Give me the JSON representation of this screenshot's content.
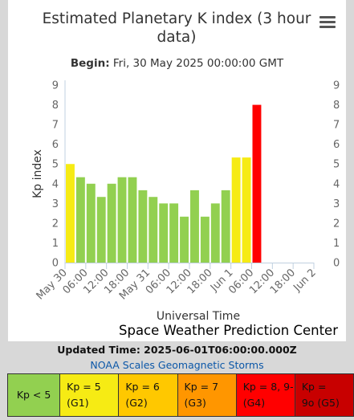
{
  "title": "Estimated Planetary K index (3 hour data)",
  "menu_icon": "hamburger-menu-icon",
  "begin": {
    "label": "Begin:",
    "value": "Fri, 30 May 2025 00:00:00 GMT"
  },
  "credits": "Space Weather Prediction Center",
  "updated": "Updated Time: 2025-06-01T06:00:00.000Z",
  "noaa_link": "NOAA Scales Geomagnetic Storms",
  "legend": [
    {
      "line1": "Kp < 5",
      "line2": "",
      "color": "#92d050"
    },
    {
      "line1": "Kp = 5",
      "line2": "(G1)",
      "color": "#f6eb14"
    },
    {
      "line1": "Kp = 6",
      "line2": "(G2)",
      "color": "#ffc800"
    },
    {
      "line1": "Kp = 7",
      "line2": "(G3)",
      "color": "#ff9600"
    },
    {
      "line1": "Kp = 8, 9-",
      "line2": "(G4)",
      "color": "#ff0000"
    },
    {
      "line1": "Kp =",
      "line2": "9o (G5)",
      "color": "#c80000"
    }
  ],
  "chart_data": {
    "type": "bar",
    "title": "Estimated Planetary K index (3 hour data)",
    "xlabel": "Universal Time",
    "ylabel": "Kp index",
    "ylim": [
      0,
      9
    ],
    "yticks": [
      "0",
      "1",
      "2",
      "3",
      "4",
      "5",
      "6",
      "7",
      "8",
      "9"
    ],
    "x_start": "2025-05-30 00:00",
    "x_end": "2025-06-02 00:00",
    "xtick_labels": [
      "May 30",
      "06:00",
      "12:00",
      "18:00",
      "May 31",
      "06:00",
      "12:00",
      "18:00",
      "Jun 1",
      "06:00",
      "12:00",
      "18:00",
      "Jun 2"
    ],
    "x": [
      "2025-05-30 00:00",
      "2025-05-30 03:00",
      "2025-05-30 06:00",
      "2025-05-30 09:00",
      "2025-05-30 12:00",
      "2025-05-30 15:00",
      "2025-05-30 18:00",
      "2025-05-30 21:00",
      "2025-05-31 00:00",
      "2025-05-31 03:00",
      "2025-05-31 06:00",
      "2025-05-31 09:00",
      "2025-05-31 12:00",
      "2025-05-31 15:00",
      "2025-05-31 18:00",
      "2025-05-31 21:00",
      "2025-06-01 00:00",
      "2025-06-01 03:00",
      "2025-06-01 06:00"
    ],
    "values": [
      5.0,
      4.33,
      4.0,
      3.33,
      4.0,
      4.33,
      4.33,
      3.67,
      3.33,
      3.0,
      3.0,
      2.33,
      3.67,
      2.33,
      3.0,
      3.67,
      5.33,
      5.33,
      8.0
    ],
    "colors": [
      "#f6eb14",
      "#92d050",
      "#92d050",
      "#92d050",
      "#92d050",
      "#92d050",
      "#92d050",
      "#92d050",
      "#92d050",
      "#92d050",
      "#92d050",
      "#92d050",
      "#92d050",
      "#92d050",
      "#92d050",
      "#92d050",
      "#f6eb14",
      "#f6eb14",
      "#ff0000"
    ],
    "grid": false
  }
}
